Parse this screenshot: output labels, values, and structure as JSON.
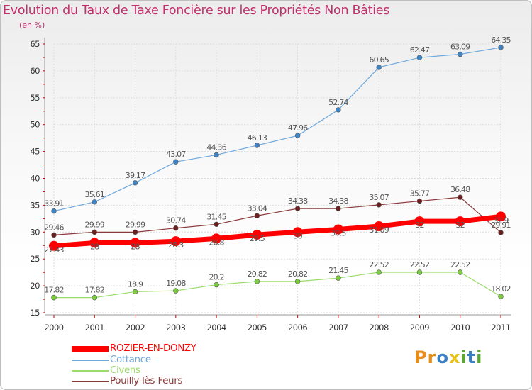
{
  "title": "Evolution du Taux de Taxe Foncière sur les Propriétés Non Bâties",
  "unit_label": "(en %)",
  "logo": {
    "text": "Proxiti",
    "letters": [
      "P",
      "r",
      "o",
      "x",
      "i",
      "t",
      "i"
    ],
    "colors": [
      "#e88c1a",
      "#e88c1a",
      "#3a7fc4",
      "#e8c11a",
      "#5aa832",
      "#3a7fc4",
      "#5aa832"
    ]
  },
  "chart_data": {
    "type": "line",
    "title": "Evolution du Taux de Taxe Foncière sur les Propriétés Non Bâties",
    "ylabel": "(en %)",
    "x": [
      "2000",
      "2001",
      "2002",
      "2003",
      "2004",
      "2005",
      "2006",
      "2007",
      "2008",
      "2009",
      "2010",
      "2011"
    ],
    "ylim": [
      15,
      65
    ],
    "yticks": [
      15,
      20,
      25,
      30,
      35,
      40,
      45,
      50,
      55,
      60,
      65
    ],
    "grid": true,
    "legend_position": "bottom-left",
    "series": [
      {
        "name": "ROZIER-EN-DONZY",
        "color": "#ff0000",
        "bold": true,
        "values": [
          27.43,
          28,
          28,
          28.3,
          28.8,
          29.5,
          30,
          30.5,
          31.09,
          32,
          32,
          32.9
        ],
        "labels": [
          "27.43",
          "28",
          "28",
          "28.3",
          "28.8",
          "29.5",
          "30",
          "30.5",
          "31.09",
          "32",
          "32",
          "32.9"
        ]
      },
      {
        "name": "Cottance",
        "color": "#6fa8dc",
        "point_color": "#3d85c6",
        "values": [
          33.91,
          35.61,
          39.17,
          43.07,
          44.36,
          46.13,
          47.96,
          52.74,
          60.65,
          62.47,
          63.09,
          64.35
        ],
        "labels": [
          "33.91",
          "35.61",
          "39.17",
          "43.07",
          "44.36",
          "46.13",
          "47.96",
          "52.74",
          "60.65",
          "62.47",
          "63.09",
          "64.35"
        ]
      },
      {
        "name": "Civens",
        "color": "#9bdc6b",
        "point_color": "#7ccc3f",
        "values": [
          17.82,
          17.82,
          18.9,
          19.08,
          20.2,
          20.82,
          20.82,
          21.45,
          22.52,
          22.52,
          22.52,
          18.02
        ],
        "labels": [
          "17.82",
          "17.82",
          "18.9",
          "19.08",
          "20.2",
          "20.82",
          "20.82",
          "21.45",
          "22.52",
          "22.52",
          "22.52",
          "18.02"
        ]
      },
      {
        "name": "Pouilly-lès-Feurs",
        "color": "#8b3a3a",
        "point_color": "#6b1f1f",
        "values": [
          29.46,
          29.99,
          29.99,
          30.74,
          31.45,
          33.04,
          34.38,
          34.38,
          35.07,
          35.77,
          36.48,
          29.91
        ],
        "labels": [
          "29.46",
          "29.99",
          "29.99",
          "30.74",
          "31.45",
          "33.04",
          "34.38",
          "34.38",
          "35.07",
          "35.77",
          "36.48",
          "29.91"
        ]
      }
    ]
  }
}
